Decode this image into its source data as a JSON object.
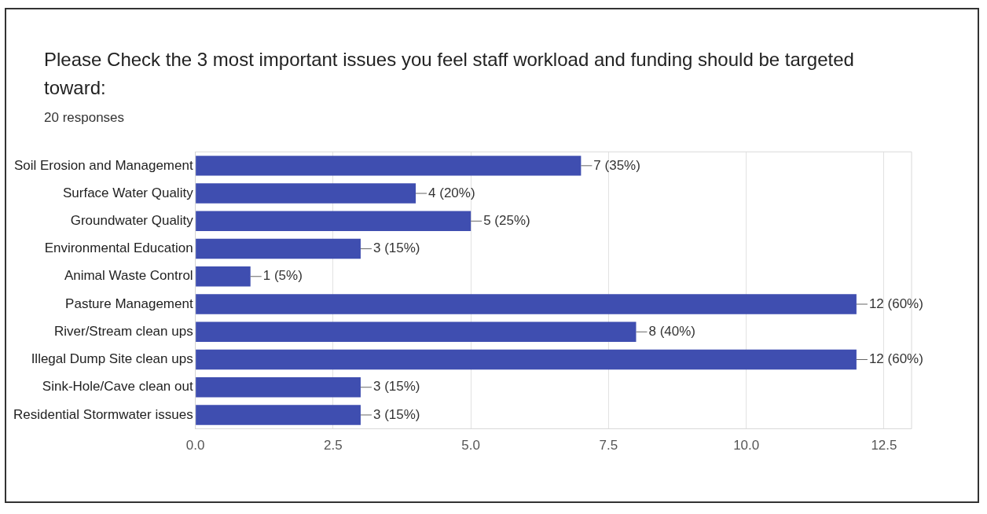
{
  "chart_data": {
    "type": "bar",
    "orientation": "horizontal",
    "title": "Please Check the 3 most important issues you feel staff workload and funding should be targeted toward:",
    "subtitle": "20 responses",
    "categories": [
      "Soil Erosion and Management",
      "Surface Water Quality",
      "Groundwater Quality",
      "Environmental Education",
      "Animal Waste Control",
      "Pasture Management",
      "River/Stream clean ups",
      "Illegal Dump Site clean ups",
      "Sink-Hole/Cave clean out",
      "Residential Stormwater issues"
    ],
    "values": [
      7,
      4,
      5,
      3,
      1,
      12,
      8,
      12,
      3,
      3
    ],
    "value_labels": [
      "7 (35%)",
      "4 (20%)",
      "5 (25%)",
      "3 (15%)",
      "1 (5%)",
      "12 (60%)",
      "8 (40%)",
      "12 (60%)",
      "3 (15%)",
      "3 (15%)"
    ],
    "color": "#3f4eb0",
    "xlim": [
      0,
      13
    ],
    "xticks": [
      {
        "value": 0,
        "label": "0.0"
      },
      {
        "value": 2.5,
        "label": "2.5"
      },
      {
        "value": 5,
        "label": "5.0"
      },
      {
        "value": 7.5,
        "label": "7.5"
      },
      {
        "value": 10,
        "label": "10.0"
      },
      {
        "value": 12.5,
        "label": "12.5"
      }
    ],
    "grid": "x",
    "legend": false
  }
}
